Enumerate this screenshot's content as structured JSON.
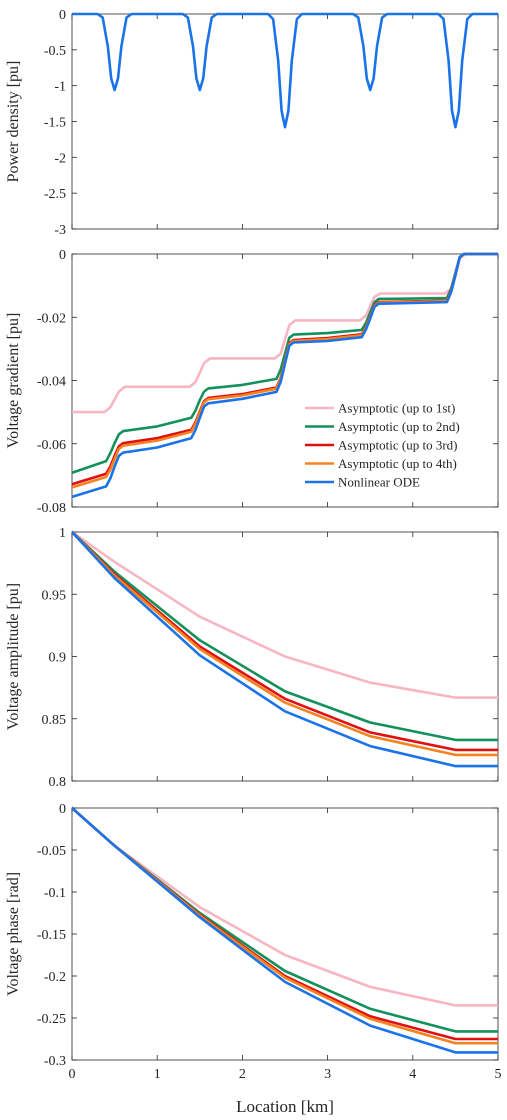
{
  "figure": {
    "xlabel": "Location [km]",
    "x_ticks": [
      "0",
      "1",
      "2",
      "3",
      "4",
      "5"
    ]
  },
  "colors": {
    "asym1": "#f7b6c2",
    "asym2": "#14915a",
    "asym3": "#e01010",
    "asym4": "#f58220",
    "ode": "#1a73e8"
  },
  "legend": {
    "position": "inside-lower-right of voltage gradient panel",
    "entries": [
      "Asymptotic (up to 1st)",
      "Asymptotic (up to 2nd)",
      "Asymptotic (up to 3rd)",
      "Asymptotic (up to 4th)",
      "Nonlinear ODE"
    ]
  },
  "chart_data": [
    {
      "type": "line",
      "title": "",
      "xlabel": "",
      "ylabel": "Power density [pu]",
      "xlim": [
        0,
        5
      ],
      "ylim": [
        -3,
        0
      ],
      "y_ticks": [
        "0",
        "-0.5",
        "-1",
        "-1.5",
        "-2",
        "-2.5",
        "-3"
      ],
      "y_tick_values": [
        0,
        -0.5,
        -1,
        -1.5,
        -2,
        -2.5,
        -3
      ],
      "grid": false,
      "series": [
        {
          "color_key": "ode",
          "x": [
            0,
            0.3,
            0.36,
            0.42,
            0.46,
            0.5,
            0.54,
            0.58,
            0.64,
            0.7,
            1.3,
            1.36,
            1.42,
            1.46,
            1.5,
            1.54,
            1.58,
            1.64,
            1.7,
            2.3,
            2.36,
            2.42,
            2.46,
            2.5,
            2.54,
            2.58,
            2.64,
            2.7,
            3.3,
            3.36,
            3.42,
            3.46,
            3.5,
            3.54,
            3.58,
            3.64,
            3.7,
            4.3,
            4.36,
            4.42,
            4.46,
            4.5,
            4.54,
            4.58,
            4.64,
            4.7,
            5
          ],
          "y": [
            0,
            0,
            -0.05,
            -0.45,
            -0.9,
            -1.06,
            -0.9,
            -0.45,
            -0.05,
            0,
            0,
            -0.05,
            -0.45,
            -0.9,
            -1.06,
            -0.9,
            -0.45,
            -0.05,
            0,
            0,
            -0.07,
            -0.65,
            -1.35,
            -1.58,
            -1.35,
            -0.65,
            -0.07,
            0,
            0,
            -0.05,
            -0.45,
            -0.9,
            -1.06,
            -0.9,
            -0.45,
            -0.05,
            0,
            0,
            -0.07,
            -0.65,
            -1.35,
            -1.58,
            -1.35,
            -0.65,
            -0.07,
            0,
            0
          ]
        }
      ]
    },
    {
      "type": "line",
      "title": "",
      "xlabel": "",
      "ylabel": "Voltage gradient [pu]",
      "xlim": [
        0,
        5
      ],
      "ylim": [
        -0.08,
        0
      ],
      "y_ticks": [
        "0",
        "-0.02",
        "-0.04",
        "-0.06",
        "-0.08"
      ],
      "y_tick_values": [
        0,
        -0.02,
        -0.04,
        -0.06,
        -0.08
      ],
      "grid": false,
      "series": [
        {
          "name": "Asymptotic (up to 1st)",
          "color_key": "asym1",
          "x": [
            0,
            0.38,
            0.45,
            0.5,
            0.55,
            0.62,
            1.38,
            1.45,
            1.5,
            1.55,
            1.62,
            2.38,
            2.45,
            2.5,
            2.55,
            2.62,
            3.38,
            3.45,
            3.5,
            3.55,
            3.62,
            4.38,
            4.45,
            4.5,
            4.55,
            4.62,
            5
          ],
          "y": [
            -0.05,
            -0.05,
            -0.0485,
            -0.046,
            -0.0435,
            -0.042,
            -0.042,
            -0.0405,
            -0.0375,
            -0.0345,
            -0.033,
            -0.033,
            -0.0315,
            -0.027,
            -0.0225,
            -0.021,
            -0.021,
            -0.0195,
            -0.0165,
            -0.0135,
            -0.0125,
            -0.0125,
            -0.011,
            -0.0065,
            -0.0015,
            0,
            0
          ]
        },
        {
          "name": "Asymptotic (up to 2nd)",
          "color_key": "asym2",
          "x": [
            0,
            0.4,
            0.45,
            0.5,
            0.55,
            0.6,
            1.0,
            1.4,
            1.45,
            1.5,
            1.55,
            1.6,
            2.0,
            2.4,
            2.45,
            2.5,
            2.55,
            2.6,
            3.0,
            3.4,
            3.45,
            3.5,
            3.55,
            3.6,
            4.0,
            4.4,
            4.45,
            4.5,
            4.55,
            4.6,
            5
          ],
          "y": [
            -0.0692,
            -0.0655,
            -0.063,
            -0.0598,
            -0.057,
            -0.056,
            -0.0545,
            -0.0518,
            -0.0495,
            -0.0462,
            -0.0435,
            -0.0425,
            -0.0414,
            -0.0395,
            -0.0365,
            -0.0315,
            -0.0265,
            -0.0255,
            -0.025,
            -0.024,
            -0.0218,
            -0.0185,
            -0.0152,
            -0.0142,
            -0.0141,
            -0.0139,
            -0.011,
            -0.006,
            -0.001,
            0,
            0
          ]
        },
        {
          "name": "Asymptotic (up to 3rd)",
          "color_key": "asym3",
          "x": [
            0,
            0.4,
            0.45,
            0.5,
            0.55,
            0.6,
            1.0,
            1.4,
            1.45,
            1.5,
            1.55,
            1.6,
            2.0,
            2.4,
            2.45,
            2.5,
            2.55,
            2.6,
            3.0,
            3.4,
            3.45,
            3.5,
            3.55,
            3.6,
            4.0,
            4.4,
            4.45,
            4.5,
            4.55,
            4.6,
            5
          ],
          "y": [
            -0.0728,
            -0.0695,
            -0.0672,
            -0.0638,
            -0.0608,
            -0.0598,
            -0.0582,
            -0.0556,
            -0.0532,
            -0.0498,
            -0.0465,
            -0.0455,
            -0.0443,
            -0.0422,
            -0.0392,
            -0.0338,
            -0.0282,
            -0.0272,
            -0.0266,
            -0.0254,
            -0.0232,
            -0.0198,
            -0.0162,
            -0.0152,
            -0.015,
            -0.0147,
            -0.0117,
            -0.0065,
            -0.001,
            0,
            0
          ]
        },
        {
          "name": "Asymptotic (up to 4th)",
          "color_key": "asym4",
          "x": [
            0,
            0.4,
            0.45,
            0.5,
            0.55,
            0.6,
            1.0,
            1.4,
            1.45,
            1.5,
            1.55,
            1.6,
            2.0,
            2.4,
            2.45,
            2.5,
            2.55,
            2.6,
            3.0,
            3.4,
            3.45,
            3.5,
            3.55,
            3.6,
            4.0,
            4.4,
            4.45,
            4.5,
            4.55,
            4.6,
            5
          ],
          "y": [
            -0.0738,
            -0.0705,
            -0.0682,
            -0.0648,
            -0.0616,
            -0.0606,
            -0.059,
            -0.0562,
            -0.0538,
            -0.0503,
            -0.0469,
            -0.0459,
            -0.0447,
            -0.0426,
            -0.0396,
            -0.0341,
            -0.0285,
            -0.0275,
            -0.0269,
            -0.0257,
            -0.0234,
            -0.02,
            -0.0164,
            -0.0154,
            -0.0152,
            -0.0149,
            -0.0119,
            -0.0066,
            -0.001,
            0,
            0
          ]
        },
        {
          "name": "Nonlinear ODE",
          "color_key": "ode",
          "x": [
            0,
            0.4,
            0.45,
            0.5,
            0.55,
            0.6,
            1.0,
            1.4,
            1.45,
            1.5,
            1.55,
            1.6,
            2.0,
            2.4,
            2.45,
            2.5,
            2.55,
            2.6,
            3.0,
            3.4,
            3.45,
            3.5,
            3.55,
            3.6,
            4.0,
            4.4,
            4.45,
            4.5,
            4.55,
            4.6,
            5
          ],
          "y": [
            -0.0768,
            -0.0735,
            -0.071,
            -0.0672,
            -0.0638,
            -0.0628,
            -0.0612,
            -0.0582,
            -0.0556,
            -0.0518,
            -0.0482,
            -0.0472,
            -0.0458,
            -0.0436,
            -0.0404,
            -0.0347,
            -0.029,
            -0.028,
            -0.0275,
            -0.0263,
            -0.0239,
            -0.0204,
            -0.0167,
            -0.0157,
            -0.0155,
            -0.0152,
            -0.0121,
            -0.0068,
            -0.001,
            0,
            0
          ]
        }
      ]
    },
    {
      "type": "line",
      "title": "",
      "xlabel": "",
      "ylabel": "Voltage amplitude [pu]",
      "xlim": [
        0,
        5
      ],
      "ylim": [
        0.8,
        1
      ],
      "y_ticks": [
        "1",
        "0.95",
        "0.9",
        "0.85",
        "0.8"
      ],
      "y_tick_values": [
        1,
        0.95,
        0.9,
        0.85,
        0.8
      ],
      "grid": false,
      "series": [
        {
          "name": "Asymptotic (up to 1st)",
          "color_key": "asym1",
          "x": [
            0,
            0.5,
            1.5,
            2.5,
            3.5,
            4.5,
            5
          ],
          "y": [
            1,
            0.976,
            0.932,
            0.9,
            0.879,
            0.867,
            0.867
          ]
        },
        {
          "name": "Asymptotic (up to 2nd)",
          "color_key": "asym2",
          "x": [
            0,
            0.5,
            1.5,
            2.5,
            3.5,
            4.5,
            5
          ],
          "y": [
            1,
            0.968,
            0.913,
            0.872,
            0.847,
            0.833,
            0.833
          ]
        },
        {
          "name": "Asymptotic (up to 3rd)",
          "color_key": "asym3",
          "x": [
            0,
            0.5,
            1.5,
            2.5,
            3.5,
            4.5,
            5
          ],
          "y": [
            1,
            0.966,
            0.908,
            0.866,
            0.839,
            0.825,
            0.825
          ]
        },
        {
          "name": "Asymptotic (up to 4th)",
          "color_key": "asym4",
          "x": [
            0,
            0.5,
            1.5,
            2.5,
            3.5,
            4.5,
            5
          ],
          "y": [
            1,
            0.965,
            0.906,
            0.863,
            0.836,
            0.821,
            0.821
          ]
        },
        {
          "name": "Nonlinear ODE",
          "color_key": "ode",
          "x": [
            0,
            0.5,
            1.5,
            2.5,
            3.5,
            4.5,
            5
          ],
          "y": [
            1,
            0.963,
            0.901,
            0.856,
            0.828,
            0.812,
            0.812
          ]
        }
      ]
    },
    {
      "type": "line",
      "title": "",
      "xlabel": "Location [km]",
      "ylabel": "Voltage phase [rad]",
      "xlim": [
        0,
        5
      ],
      "ylim": [
        -0.3,
        0
      ],
      "y_ticks": [
        "0",
        "-0.05",
        "-0.1",
        "-0.15",
        "-0.2",
        "-0.25",
        "-0.3"
      ],
      "y_tick_values": [
        0,
        -0.05,
        -0.1,
        -0.15,
        -0.2,
        -0.25,
        -0.3
      ],
      "grid": false,
      "series": [
        {
          "name": "Asymptotic (up to 1st)",
          "color_key": "asym1",
          "x": [
            0,
            0.5,
            1.5,
            2.5,
            3.5,
            4.5,
            5
          ],
          "y": [
            0,
            -0.045,
            -0.118,
            -0.175,
            -0.213,
            -0.235,
            -0.235
          ]
        },
        {
          "name": "Asymptotic (up to 2nd)",
          "color_key": "asym2",
          "x": [
            0,
            0.5,
            1.5,
            2.5,
            3.5,
            4.5,
            5
          ],
          "y": [
            0,
            -0.045,
            -0.125,
            -0.194,
            -0.239,
            -0.266,
            -0.266
          ]
        },
        {
          "name": "Asymptotic (up to 3rd)",
          "color_key": "asym3",
          "x": [
            0,
            0.5,
            1.5,
            2.5,
            3.5,
            4.5,
            5
          ],
          "y": [
            0,
            -0.045,
            -0.127,
            -0.2,
            -0.248,
            -0.275,
            -0.275
          ]
        },
        {
          "name": "Asymptotic (up to 4th)",
          "color_key": "asym4",
          "x": [
            0,
            0.5,
            1.5,
            2.5,
            3.5,
            4.5,
            5
          ],
          "y": [
            0,
            -0.045,
            -0.128,
            -0.202,
            -0.251,
            -0.28,
            -0.28
          ]
        },
        {
          "name": "Nonlinear ODE",
          "color_key": "ode",
          "x": [
            0,
            0.5,
            1.5,
            2.5,
            3.5,
            4.5,
            5
          ],
          "y": [
            0,
            -0.045,
            -0.13,
            -0.207,
            -0.259,
            -0.291,
            -0.291
          ]
        }
      ]
    }
  ]
}
